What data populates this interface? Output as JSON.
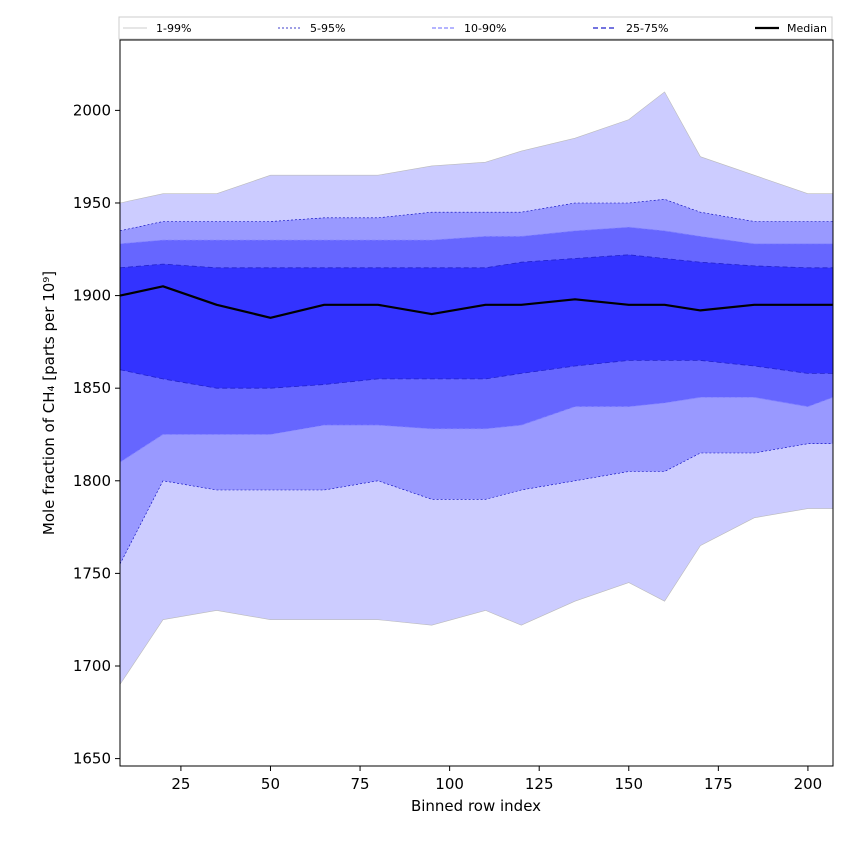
{
  "chart_data": {
    "type": "area",
    "xlabel": "Binned row index",
    "ylabel": "Mole fraction of CH₄ [parts per 10⁹]",
    "xlim": [
      8,
      207
    ],
    "ylim": [
      1646,
      2038
    ],
    "x_ticks": [
      25,
      50,
      75,
      100,
      125,
      150,
      175,
      200
    ],
    "y_ticks": [
      1650,
      1700,
      1750,
      1800,
      1850,
      1900,
      1950,
      2000
    ],
    "grid": false,
    "legend_position": "top",
    "colors": {
      "band_1_99": "#ccccff",
      "band_5_95": "#9999ff",
      "band_10_90": "#6666ff",
      "band_25_75": "#3333ff",
      "median": "#000000",
      "edge_1_99": "#bbbbbb",
      "edge_5_95": "#0000bb",
      "edge_10_90": "#8888ff",
      "edge_25_75": "#2222cc"
    },
    "legend": [
      {
        "key": "p1_99",
        "label": "1-99%"
      },
      {
        "key": "p5_95",
        "label": "5-95%"
      },
      {
        "key": "p10_90",
        "label": "10-90%"
      },
      {
        "key": "p25_75",
        "label": "25-75%"
      },
      {
        "key": "median",
        "label": "Median"
      }
    ],
    "x": [
      8,
      20,
      35,
      50,
      65,
      80,
      95,
      110,
      120,
      135,
      150,
      160,
      170,
      185,
      200,
      207
    ],
    "series": [
      {
        "key": "p1",
        "name": "1%",
        "values": [
          1690,
          1725,
          1730,
          1725,
          1725,
          1725,
          1722,
          1730,
          1722,
          1735,
          1745,
          1735,
          1765,
          1780,
          1785,
          1785
        ]
      },
      {
        "key": "p5",
        "name": "5%",
        "values": [
          1755,
          1800,
          1795,
          1795,
          1795,
          1800,
          1790,
          1790,
          1795,
          1800,
          1805,
          1805,
          1815,
          1815,
          1820,
          1820
        ]
      },
      {
        "key": "p10",
        "name": "10%",
        "values": [
          1810,
          1825,
          1825,
          1825,
          1830,
          1830,
          1828,
          1828,
          1830,
          1840,
          1840,
          1842,
          1845,
          1845,
          1840,
          1845
        ]
      },
      {
        "key": "p25",
        "name": "25%",
        "values": [
          1860,
          1855,
          1850,
          1850,
          1852,
          1855,
          1855,
          1855,
          1858,
          1862,
          1865,
          1865,
          1865,
          1862,
          1858,
          1858
        ]
      },
      {
        "key": "median",
        "name": "Median",
        "values": [
          1900,
          1905,
          1895,
          1888,
          1895,
          1895,
          1890,
          1895,
          1895,
          1898,
          1895,
          1895,
          1892,
          1895,
          1895,
          1895
        ]
      },
      {
        "key": "p75",
        "name": "75%",
        "values": [
          1915,
          1917,
          1915,
          1915,
          1915,
          1915,
          1915,
          1915,
          1918,
          1920,
          1922,
          1920,
          1918,
          1916,
          1915,
          1915
        ]
      },
      {
        "key": "p90",
        "name": "90%",
        "values": [
          1928,
          1930,
          1930,
          1930,
          1930,
          1930,
          1930,
          1932,
          1932,
          1935,
          1937,
          1935,
          1932,
          1928,
          1928,
          1928
        ]
      },
      {
        "key": "p95",
        "name": "95%",
        "values": [
          1935,
          1940,
          1940,
          1940,
          1942,
          1942,
          1945,
          1945,
          1945,
          1950,
          1950,
          1952,
          1945,
          1940,
          1940,
          1940
        ]
      },
      {
        "key": "p99",
        "name": "99%",
        "values": [
          1950,
          1955,
          1955,
          1965,
          1965,
          1965,
          1970,
          1972,
          1978,
          1985,
          1995,
          2010,
          1975,
          1965,
          1955,
          1955
        ]
      }
    ]
  }
}
